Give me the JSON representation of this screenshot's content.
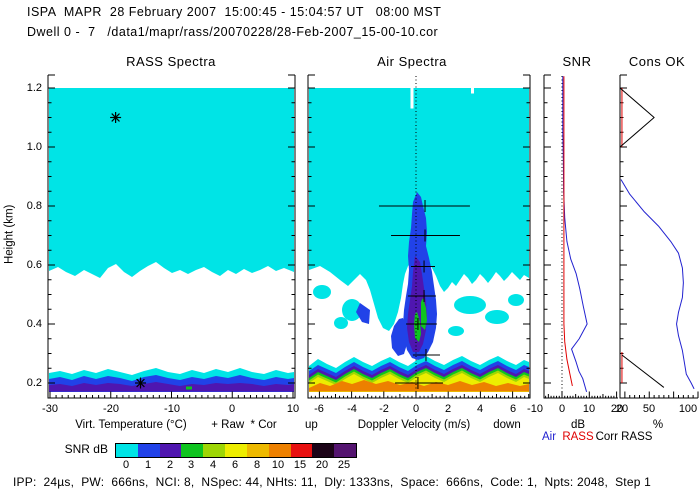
{
  "header": {
    "line1": "ISPA  MAPR  28 February 2007  15:00:45 - 15:04:57 UT   08:00 MST",
    "line2": "Dwell 0 -  7   /data1/mapr/rass/20070228/28-Feb-2007_15-00-10.cor"
  },
  "yaxis": {
    "label": "Height (km)",
    "ticks": [
      "0.2",
      "0.4",
      "0.6",
      "0.8",
      "1.0",
      "1.2"
    ]
  },
  "panels": {
    "rass": {
      "title": "RASS Spectra",
      "xlabel": "Virt. Temperature (°C)",
      "marker_legend": "+ Raw  * Cor",
      "xticks": [
        "-30",
        "-20",
        "-10",
        "0",
        "10"
      ]
    },
    "air": {
      "title": "Air Spectra",
      "xlabel": "Doppler Velocity (m/s)",
      "up": "up",
      "down": "down",
      "xticks": [
        "-6",
        "-4",
        "-2",
        "0",
        "2",
        "4",
        "6"
      ]
    },
    "snr": {
      "title": "SNR",
      "xlabel": "dB",
      "xticks": [
        "-10",
        "0",
        "10",
        "20"
      ]
    },
    "cons": {
      "title": "Cons OK",
      "xlabel": "%",
      "xticks": [
        "20",
        "50",
        "100"
      ]
    }
  },
  "legend": {
    "air": "Air",
    "rass": "RASS",
    "corr": "Corr RASS",
    "air_color": "#2222D0",
    "rass_color": "#E00000",
    "corr_color": "#000000"
  },
  "colorbar": {
    "label": "SNR dB",
    "tick_labels": [
      "0",
      "1",
      "2",
      "3",
      "4",
      "6",
      "8",
      "10",
      "15",
      "20",
      "25"
    ],
    "colors": [
      "#00E4E6",
      "#2142E8",
      "#4F16B0",
      "#0FC41F",
      "#9ED605",
      "#EDED00",
      "#EDB900",
      "#ED8000",
      "#E81010",
      "#1C0418",
      "#541470"
    ]
  },
  "footer": "IPP:  24µs,  PW:  666ns,  NCI: 8,  NSpec: 44, NHts: 11,  Dly: 1333ns,  Space:  666ns,  Code: 1,  Npts: 2048,  Step 1",
  "chart_data": [
    {
      "type": "heatmap",
      "title": "RASS Spectra",
      "xlabel": "Virt. Temperature (°C)",
      "xrange": [
        -30,
        10
      ],
      "ylabel": "Height (km)",
      "yrange": [
        0.2,
        1.2
      ],
      "colorbar_units": "SNR dB",
      "features": [
        "uniform 0-1 dB (cyan) region over all temperatures from 0.62 to 1.2 km with wavy lower edge",
        "no signal (white) from 0.27 to 0.62 km",
        "layered echo band 0.19-0.26 km: cyan over blue over purple (0-3 dB), small green speck near -7 C"
      ],
      "markers": {
        "cor": [
          {
            "temp": -19.2,
            "height": 1.1
          },
          {
            "temp": -15.1,
            "height": 0.2
          }
        ],
        "raw": []
      }
    },
    {
      "type": "heatmap",
      "title": "Air Spectra",
      "xlabel": "Doppler Velocity (m/s)",
      "xrange": [
        -7,
        7.2
      ],
      "ylabel": "Height (km)",
      "yrange": [
        0.2,
        1.2
      ],
      "colorbar_units": "SNR dB",
      "features": [
        "uniform cyan background 0.62-1.2 km with wavy lower edge and scattered cyan patches 0.28-0.62 km",
        "vertical plume near +0.5 m/s from 0.35 to 0.85 km: blue outer, purple core, green inner (up to ~4 dB)",
        "strong wavy ground echo band 0.20-0.28 km across all velocities: rainbow layers up to orange (~10 dB)"
      ],
      "error_bars": [
        {
          "height": 0.8,
          "v_min": -2.3,
          "v_max": 3.35,
          "v_center": 0.56
        },
        {
          "height": 0.7,
          "v_min": -1.55,
          "v_max": 2.73,
          "v_center": 0.56
        },
        {
          "height": 0.595,
          "v_min": -0.31,
          "v_max": 1.18,
          "v_center": 0.5
        },
        {
          "height": 0.495,
          "v_min": -0.5,
          "v_max": 1.24,
          "v_center": 0.5
        },
        {
          "height": 0.4,
          "v_min": -0.62,
          "v_max": 1.3,
          "v_center": 0.12
        },
        {
          "height": 0.295,
          "v_min": -0.19,
          "v_max": 1.49,
          "v_center": 0.62
        },
        {
          "height": 0.2,
          "v_min": -1.3,
          "v_max": 1.68,
          "v_center": 0.12
        }
      ]
    },
    {
      "type": "line",
      "title": "SNR",
      "xlabel": "dB",
      "xrange": [
        -10,
        20
      ],
      "ylabel": "Height (km)",
      "yrange": [
        0.2,
        1.2
      ],
      "series": [
        {
          "name": "Air",
          "color": "#2222D0",
          "segments": [
            [
              [
                0.3,
                1.24
              ],
              [
                0.3,
                1.05
              ],
              [
                0.5,
                0.95
              ],
              [
                0.6,
                0.85
              ],
              [
                1.0,
                0.76
              ],
              [
                1.8,
                0.68
              ],
              [
                3.2,
                0.62
              ],
              [
                5.2,
                0.57
              ],
              [
                6.5,
                0.52
              ],
              [
                7.8,
                0.46
              ],
              [
                9.2,
                0.4
              ],
              [
                6.3,
                0.35
              ],
              [
                3.5,
                0.315
              ],
              [
                5.2,
                0.27
              ],
              [
                6.2,
                0.24
              ],
              [
                7.6,
                0.215
              ],
              [
                9.0,
                0.17
              ]
            ]
          ]
        },
        {
          "name": "RASS",
          "color": "#E00000",
          "segments": [
            [
              [
                0.7,
                1.24
              ],
              [
                0.7,
                0.4
              ],
              [
                1.0,
                0.34
              ],
              [
                1.8,
                0.28
              ],
              [
                2.9,
                0.23
              ],
              [
                3.8,
                0.19
              ]
            ]
          ]
        }
      ],
      "zero_line_dotted": true
    },
    {
      "type": "line",
      "title": "Cons OK",
      "xlabel": "%",
      "xrange": [
        20,
        100
      ],
      "ylabel": "Height (km)",
      "yrange": [
        0.2,
        1.2
      ],
      "series": [
        {
          "name": "Air",
          "color": "#2222D0",
          "segments": [
            [
              [
                21,
                0.89
              ],
              [
                30,
                0.84
              ],
              [
                45,
                0.78
              ],
              [
                60,
                0.73
              ],
              [
                72,
                0.68
              ],
              [
                80,
                0.64
              ],
              [
                84,
                0.59
              ],
              [
                85,
                0.54
              ],
              [
                84,
                0.49
              ],
              [
                80,
                0.44
              ],
              [
                78,
                0.4
              ],
              [
                80,
                0.36
              ],
              [
                84,
                0.31
              ],
              [
                86,
                0.27
              ],
              [
                88,
                0.23
              ],
              [
                93,
                0.2
              ],
              [
                96,
                0.18
              ]
            ]
          ]
        },
        {
          "name": "RASS",
          "color": "#E00000",
          "segments": [
            [
              [
                22,
                1.2
              ],
              [
                22,
                1.0
              ]
            ],
            [
              [
                22,
                0.305
              ],
              [
                22,
                0.2
              ]
            ]
          ]
        },
        {
          "name": "Corr RASS",
          "color": "#000000",
          "segments": [
            [
              [
                20,
                1.2
              ],
              [
                55,
                1.1
              ],
              [
                20,
                1.0
              ]
            ],
            [
              [
                22,
                0.295
              ],
              [
                65,
                0.185
              ]
            ]
          ]
        }
      ]
    }
  ]
}
